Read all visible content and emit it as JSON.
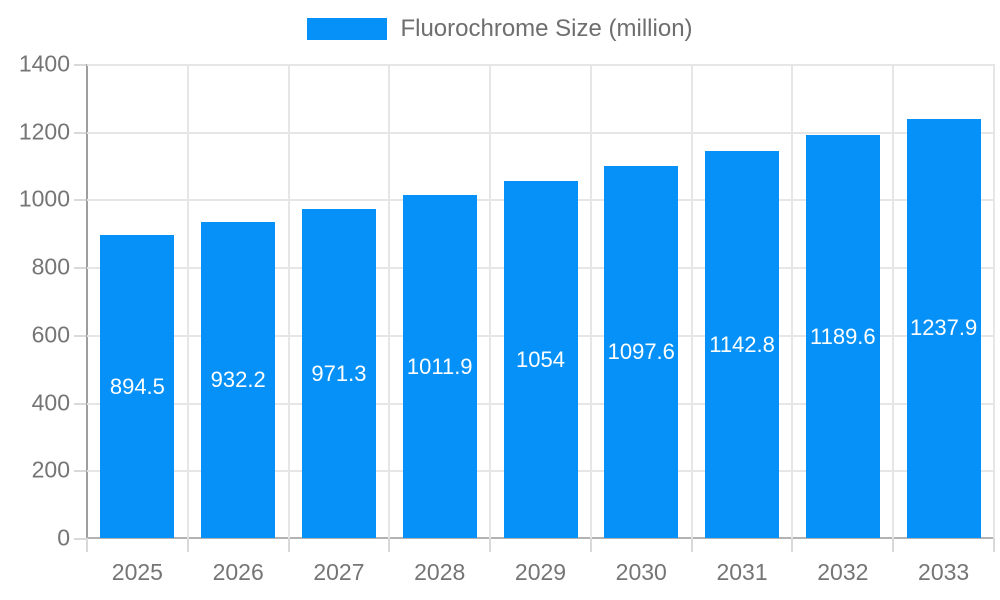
{
  "chart_data": {
    "type": "bar",
    "title": "Fluorochrome Size (million)",
    "legend": {
      "label": "Fluorochrome Size (million)",
      "position": "top"
    },
    "categories": [
      "2025",
      "2026",
      "2027",
      "2028",
      "2029",
      "2030",
      "2031",
      "2032",
      "2033"
    ],
    "series": [
      {
        "name": "Fluorochrome Size (million)",
        "values": [
          894.5,
          932.2,
          971.3,
          1011.9,
          1054,
          1097.6,
          1142.8,
          1189.6,
          1237.9
        ],
        "value_labels": [
          "894.5",
          "932.2",
          "971.3",
          "1011.9",
          "1054",
          "1097.6",
          "1142.8",
          "1189.6",
          "1237.9"
        ]
      }
    ],
    "xlabel": "",
    "ylabel": "",
    "ylim": [
      0,
      1400
    ],
    "y_ticks": [
      0,
      200,
      400,
      600,
      800,
      1000,
      1200,
      1400
    ],
    "grid": true
  },
  "colors": {
    "bar": "#0591f8",
    "bar_value_text": "#ffffff",
    "axis_text": "#757575",
    "legend_text": "#6e6e6e",
    "gridline": "#e6e6e6",
    "axis_line": "#9e9e9e"
  }
}
